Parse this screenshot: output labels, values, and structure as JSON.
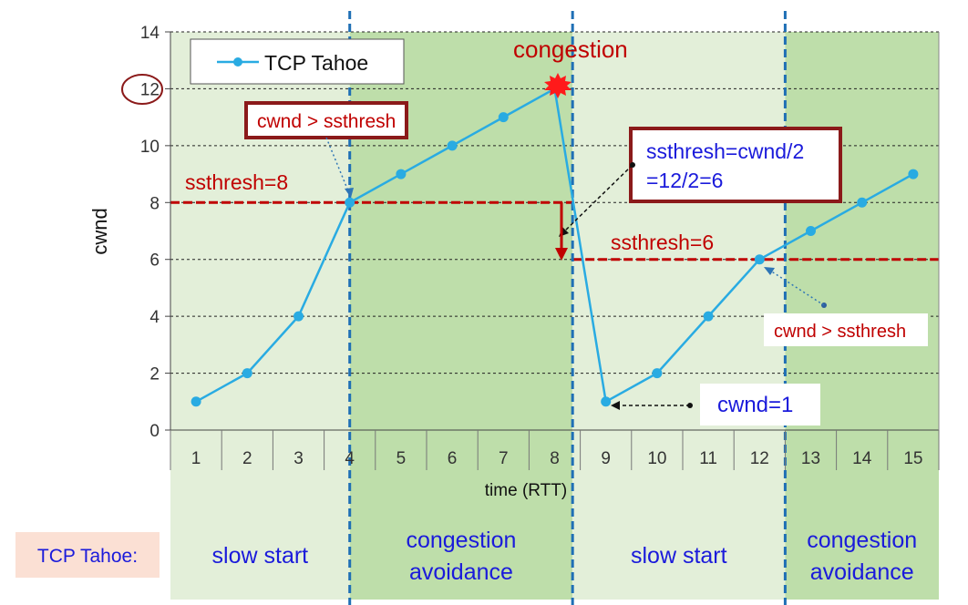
{
  "chart_data": {
    "type": "line",
    "xlabel": "time (RTT)",
    "ylabel": "cwnd",
    "xlim": [
      0.5,
      15.5
    ],
    "ylim": [
      0,
      14
    ],
    "yticks": [
      0,
      2,
      4,
      6,
      8,
      10,
      12,
      14
    ],
    "x": [
      1,
      2,
      3,
      4,
      5,
      6,
      7,
      8,
      9,
      10,
      11,
      12,
      13,
      14,
      15
    ],
    "series": [
      {
        "name": "TCP Tahoe",
        "color": "#29abe2",
        "values": [
          1,
          2,
          4,
          8,
          9,
          10,
          11,
          12,
          1,
          2,
          4,
          6,
          7,
          8,
          9
        ]
      }
    ],
    "grid": true,
    "legend_placement": "top-left",
    "phase_boundaries": [
      4,
      8.35,
      12.5
    ],
    "phases": [
      {
        "label": "slow start",
        "from": 0.5,
        "to": 4,
        "shade": "light"
      },
      {
        "label_line1": "congestion",
        "label_line2": "avoidance",
        "from": 4,
        "to": 8.35,
        "shade": "dark"
      },
      {
        "label": "slow start",
        "from": 8.35,
        "to": 12.5,
        "shade": "light"
      },
      {
        "label_line1": "congestion",
        "label_line2": "avoidance",
        "from": 12.5,
        "to": 15.5,
        "shade": "dark"
      }
    ],
    "ssthresh_lines": [
      {
        "label": "ssthresh=8",
        "y": 8,
        "x_from": 0.5,
        "x_to": 8.35
      },
      {
        "label": "ssthresh=6",
        "y": 6,
        "x_from": 8.35,
        "x_to": 15.5
      }
    ],
    "annotations": {
      "congestion": "congestion",
      "cwnd_gt_ssthresh_1": "cwnd > ssthresh",
      "cwnd_gt_ssthresh_2": "cwnd > ssthresh",
      "ssthresh_formula_line1": "ssthresh=cwnd/2",
      "ssthresh_formula_line2": "=12/2=6",
      "cwnd_reset": "cwnd=1"
    },
    "row_label": "TCP Tahoe:",
    "colors": {
      "light_bg": "#e3efd9",
      "dark_bg": "#bedeaa",
      "divider": "#1f6fb5",
      "ssthresh": "#c00000",
      "label_box_bg": "#fbe0d4"
    }
  }
}
